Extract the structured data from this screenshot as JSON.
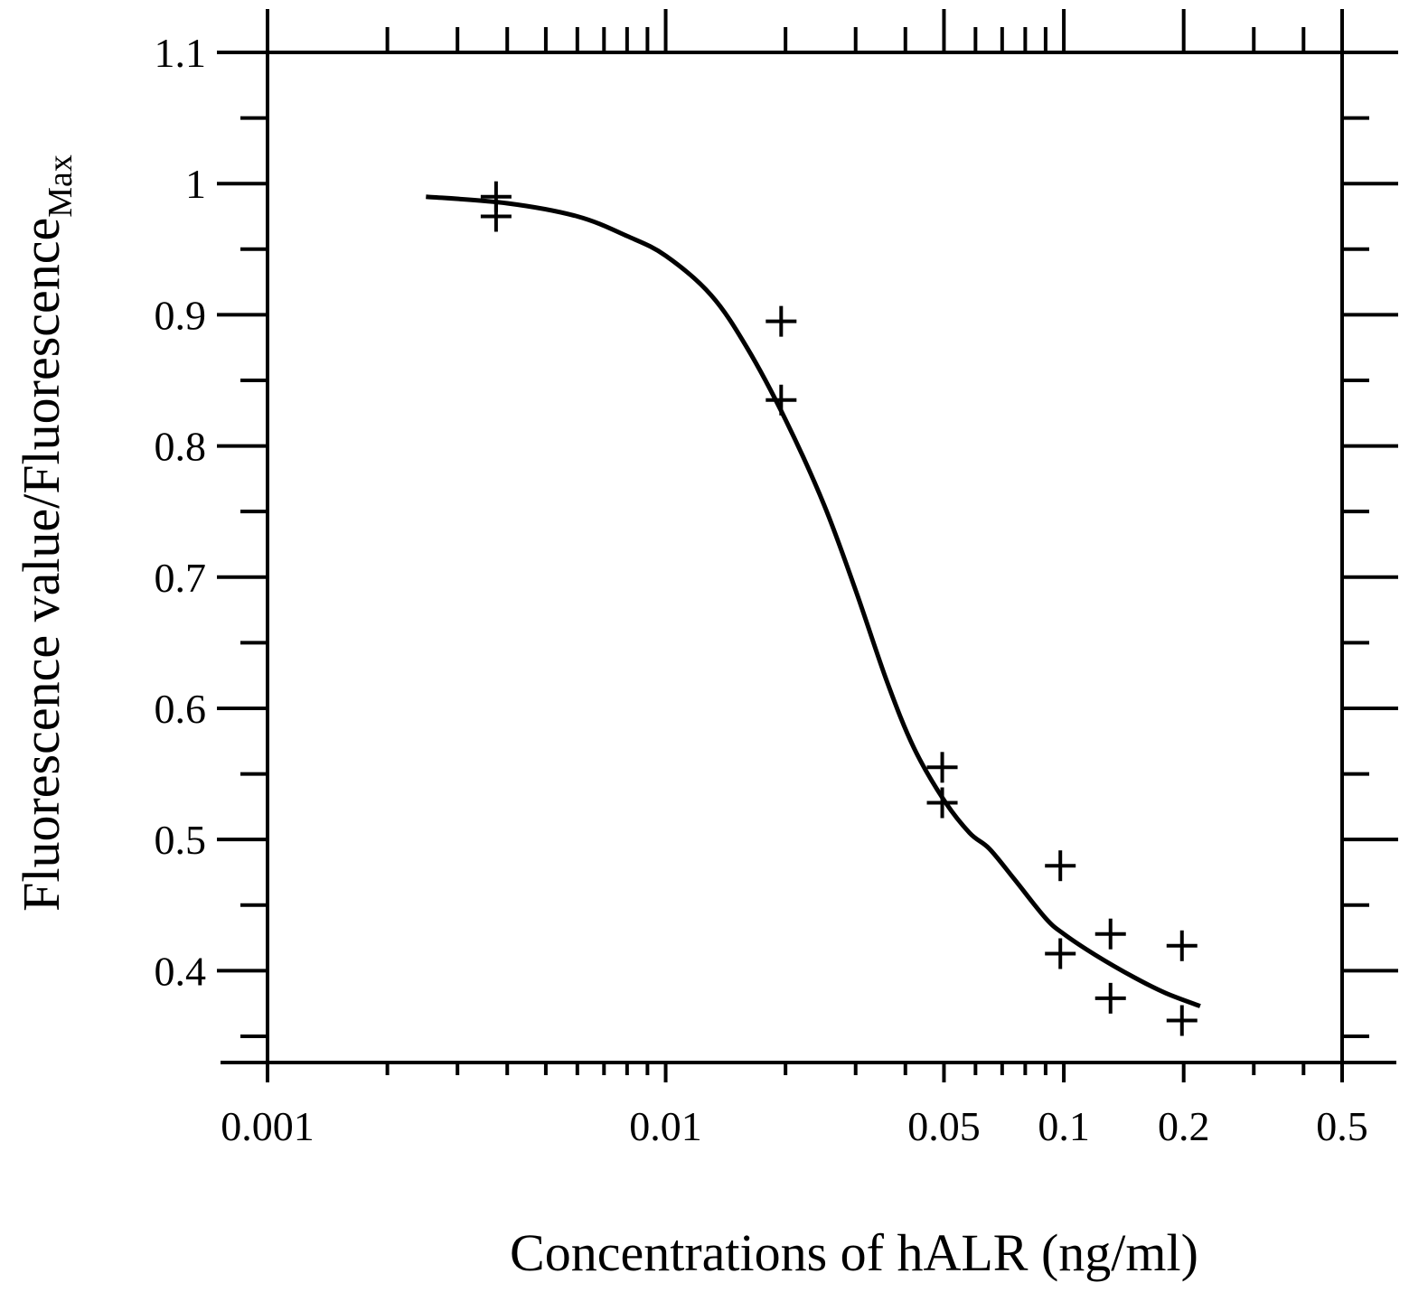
{
  "chart_data": {
    "type": "scatter",
    "x_scale": "log",
    "xlim": [
      0.001,
      0.5
    ],
    "ylim": [
      0.33,
      1.1
    ],
    "grid": false,
    "xlabel": "Concentrations of hALR (ng/ml)",
    "ylabel": {
      "main": "Fluorescence value/Fluorescence",
      "subscript": "Max"
    },
    "x_tick_labels": [
      {
        "value": 0.001,
        "label": "0.001"
      },
      {
        "value": 0.01,
        "label": "0.01"
      },
      {
        "value": 0.05,
        "label": "0.05"
      },
      {
        "value": 0.1,
        "label": "0.1"
      },
      {
        "value": 0.2,
        "label": "0.2"
      },
      {
        "value": 0.5,
        "label": "0.5"
      }
    ],
    "y_tick_labels": [
      {
        "value": 0.4,
        "label": "0.4"
      },
      {
        "value": 0.5,
        "label": "0.5"
      },
      {
        "value": 0.6,
        "label": "0.6"
      },
      {
        "value": 0.7,
        "label": "0.7"
      },
      {
        "value": 0.8,
        "label": "0.8"
      },
      {
        "value": 0.9,
        "label": "0.9"
      },
      {
        "value": 1.0,
        "label": "1"
      },
      {
        "value": 1.1,
        "label": "1.1"
      }
    ],
    "series": [
      {
        "kind": "points",
        "marker": "plus",
        "x": [
          0.00375,
          0.00375,
          0.0195,
          0.0195,
          0.0495,
          0.0495,
          0.098,
          0.098,
          0.131,
          0.131,
          0.198,
          0.198
        ],
        "y": [
          0.99,
          0.975,
          0.895,
          0.835,
          0.555,
          0.528,
          0.48,
          0.413,
          0.428,
          0.379,
          0.419,
          0.362
        ]
      },
      {
        "kind": "line",
        "x": [
          0.0025,
          0.004,
          0.006,
          0.008,
          0.01,
          0.013,
          0.016,
          0.02,
          0.025,
          0.03,
          0.036,
          0.042,
          0.05,
          0.058,
          0.065,
          0.075,
          0.09,
          0.1,
          0.12,
          0.15,
          0.18,
          0.22
        ],
        "y": [
          0.99,
          0.985,
          0.975,
          0.96,
          0.945,
          0.915,
          0.875,
          0.82,
          0.755,
          0.69,
          0.62,
          0.57,
          0.53,
          0.505,
          0.493,
          0.47,
          0.44,
          0.428,
          0.412,
          0.395,
          0.383,
          0.373
        ]
      }
    ]
  }
}
